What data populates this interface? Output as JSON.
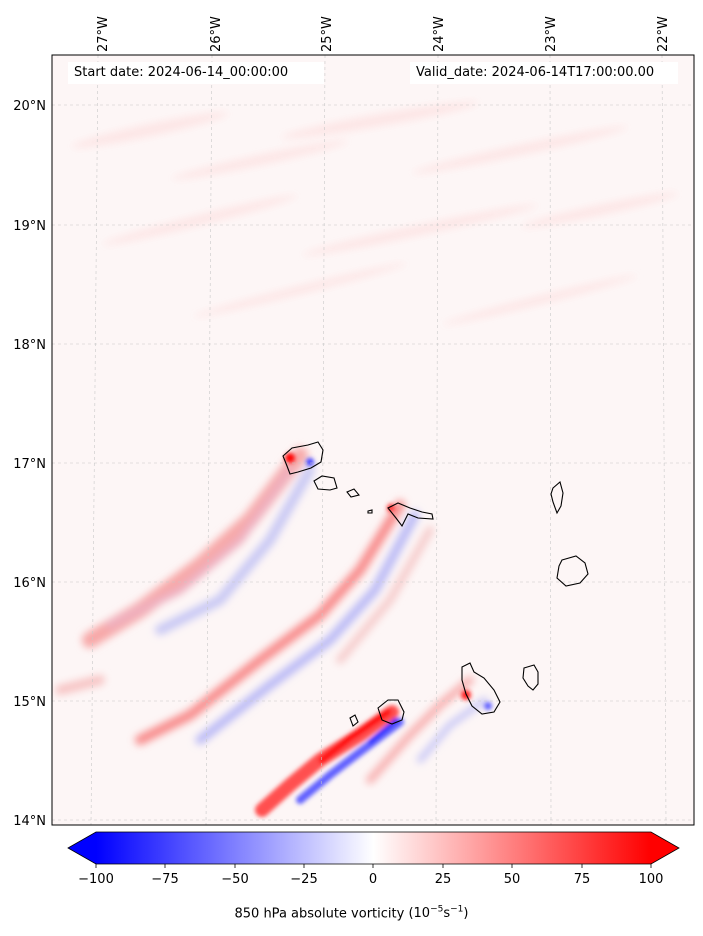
{
  "map": {
    "start_label": "Start date: 2024-06-14_00:00:00",
    "valid_label": "Valid_date: 2024-06-14T17:00:00.00",
    "lon_ticks": [
      "27°W",
      "26°W",
      "25°W",
      "24°W",
      "23°W",
      "22°W"
    ],
    "lat_ticks": [
      "20°N",
      "19°N",
      "18°N",
      "17°N",
      "16°N",
      "15°N",
      "14°N"
    ],
    "variable": "850 hPa absolute vorticity",
    "units_prefix": "(10",
    "units_exp1": "−5",
    "units_mid": "s",
    "units_exp2": "−1",
    "units_suffix": ")"
  },
  "colorbar": {
    "ticks": [
      "−100",
      "−75",
      "−50",
      "−25",
      "0",
      "25",
      "50",
      "75",
      "100"
    ],
    "min": -100,
    "max": 100,
    "colormap": "bwr",
    "low_color": "#0000ff",
    "mid_color": "#ffffff",
    "high_color": "#ff0000",
    "extend": "both"
  },
  "colors": {
    "background_field": "#fdf6f6",
    "coastline": "#000000",
    "gridline": "#c8c8c8"
  }
}
